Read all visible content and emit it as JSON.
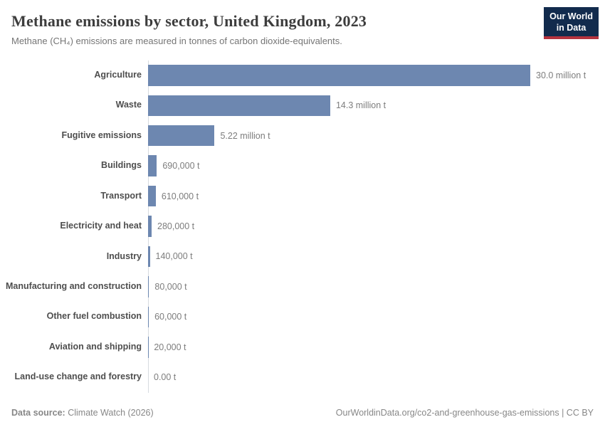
{
  "header": {
    "title": "Methane emissions by sector, United Kingdom, 2023",
    "subtitle": "Methane (CH₄) emissions are measured in tonnes of carbon dioxide-equivalents.",
    "logo": {
      "line1": "Our World",
      "line2": "in Data"
    }
  },
  "chart_data": {
    "type": "bar",
    "orientation": "horizontal",
    "title": "Methane emissions by sector, United Kingdom, 2023",
    "categories": [
      "Agriculture",
      "Waste",
      "Fugitive emissions",
      "Buildings",
      "Transport",
      "Electricity and heat",
      "Industry",
      "Manufacturing and construction",
      "Other fuel combustion",
      "Aviation and shipping",
      "Land-use change and forestry"
    ],
    "values": [
      30000000,
      14300000,
      5220000,
      690000,
      610000,
      280000,
      140000,
      80000,
      60000,
      20000,
      0
    ],
    "value_labels": [
      "30.0 million t",
      "14.3 million t",
      "5.22 million t",
      "690,000 t",
      "610,000 t",
      "280,000 t",
      "140,000 t",
      "80,000 t",
      "60,000 t",
      "20,000 t",
      "0.00 t"
    ],
    "unit": "tonnes of carbon dioxide-equivalents",
    "xlim": [
      0,
      30000000
    ],
    "grid": false,
    "legend": "none",
    "bar_color": "#6d87b0",
    "axis_color": "#d7dbe0"
  },
  "footer": {
    "source_label": "Data source:",
    "source_value": "Climate Watch (2026)",
    "attribution": "OurWorldinData.org/co2-and-greenhouse-gas-emissions | CC BY"
  },
  "colors": {
    "bar": "#6d87b0",
    "logo_bg": "#122b4d",
    "logo_accent": "#b5333f",
    "title_text": "#3d3d3d",
    "muted_text": "#757575"
  }
}
